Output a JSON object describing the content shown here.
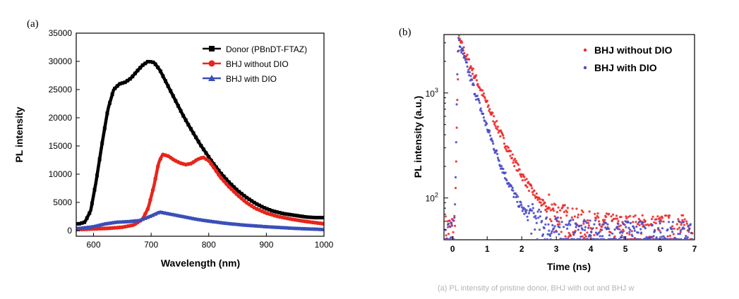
{
  "chart_data": [
    {
      "panel": "(a)",
      "type": "line",
      "xlabel": "Wavelength (nm)",
      "ylabel": "PL intensity",
      "xlim": [
        570,
        1000
      ],
      "ylim": [
        -1000,
        35000
      ],
      "xticks": [
        600,
        700,
        800,
        900,
        1000
      ],
      "yticks": [
        0,
        5000,
        10000,
        15000,
        20000,
        25000,
        30000,
        35000
      ],
      "legend_position": "top-right",
      "series": [
        {
          "name": "Donor (PBnDT-FTAZ)",
          "color": "#000000",
          "marker": "square",
          "points": [
            [
              575,
              1200
            ],
            [
              585,
              1500
            ],
            [
              595,
              3500
            ],
            [
              605,
              9000
            ],
            [
              615,
              15500
            ],
            [
              625,
              21500
            ],
            [
              635,
              25000
            ],
            [
              645,
              26000
            ],
            [
              655,
              26300
            ],
            [
              665,
              27000
            ],
            [
              675,
              28200
            ],
            [
              685,
              29300
            ],
            [
              695,
              30000
            ],
            [
              705,
              29800
            ],
            [
              715,
              28500
            ],
            [
              725,
              26500
            ],
            [
              735,
              24500
            ],
            [
              745,
              22500
            ],
            [
              755,
              20500
            ],
            [
              765,
              18700
            ],
            [
              775,
              17000
            ],
            [
              785,
              15300
            ],
            [
              795,
              13800
            ],
            [
              805,
              12300
            ],
            [
              820,
              10300
            ],
            [
              835,
              8600
            ],
            [
              850,
              7100
            ],
            [
              865,
              5900
            ],
            [
              880,
              4900
            ],
            [
              895,
              4100
            ],
            [
              910,
              3500
            ],
            [
              930,
              3000
            ],
            [
              950,
              2700
            ],
            [
              970,
              2400
            ],
            [
              985,
              2300
            ],
            [
              1000,
              2300
            ]
          ]
        },
        {
          "name": "BHJ without DIO",
          "color": "#e8251a",
          "marker": "circle",
          "points": [
            [
              575,
              200
            ],
            [
              600,
              300
            ],
            [
              625,
              400
            ],
            [
              650,
              600
            ],
            [
              670,
              1000
            ],
            [
              685,
              2000
            ],
            [
              695,
              4000
            ],
            [
              705,
              8000
            ],
            [
              713,
              12000
            ],
            [
              720,
              13500
            ],
            [
              730,
              13200
            ],
            [
              740,
              12500
            ],
            [
              750,
              12000
            ],
            [
              760,
              11700
            ],
            [
              770,
              11900
            ],
            [
              780,
              12600
            ],
            [
              790,
              13000
            ],
            [
              800,
              12400
            ],
            [
              810,
              11000
            ],
            [
              820,
              9500
            ],
            [
              835,
              7800
            ],
            [
              850,
              6300
            ],
            [
              865,
              5000
            ],
            [
              880,
              4000
            ],
            [
              900,
              3100
            ],
            [
              920,
              2500
            ],
            [
              945,
              2000
            ],
            [
              970,
              1600
            ],
            [
              1000,
              1200
            ]
          ]
        },
        {
          "name": "BHJ with DIO",
          "color": "#3a4fb8",
          "marker": "triangle",
          "points": [
            [
              575,
              400
            ],
            [
              600,
              700
            ],
            [
              620,
              1200
            ],
            [
              640,
              1500
            ],
            [
              660,
              1600
            ],
            [
              680,
              1800
            ],
            [
              700,
              2600
            ],
            [
              715,
              3300
            ],
            [
              725,
              3100
            ],
            [
              740,
              2800
            ],
            [
              760,
              2400
            ],
            [
              780,
              2000
            ],
            [
              800,
              1700
            ],
            [
              830,
              1300
            ],
            [
              860,
              1000
            ],
            [
              900,
              700
            ],
            [
              950,
              400
            ],
            [
              1000,
              200
            ]
          ]
        }
      ]
    },
    {
      "panel": "(b)",
      "type": "scatter",
      "xlabel": "Time (ns)",
      "ylabel": "PL intensity (a.u.)",
      "xscale": "linear",
      "yscale": "log",
      "xlim": [
        -0.25,
        7.0
      ],
      "ylim": [
        40,
        3600
      ],
      "xticks": [
        0,
        1,
        2,
        3,
        4,
        5,
        6,
        7
      ],
      "ytick_labels": [
        "10^2",
        "10^3"
      ],
      "legend_position": "top-right",
      "series": [
        {
          "name": "BHJ without DIO",
          "color": "#ee2a2a",
          "marker": "dot",
          "peak_time_ns": 0.18,
          "peak_value": 3300,
          "decay_tau_ns": 0.55,
          "baseline": 48
        },
        {
          "name": "BHJ with DIO",
          "color": "#4a4ac8",
          "marker": "dot",
          "peak_time_ns": 0.16,
          "peak_value": 3200,
          "decay_tau_ns": 0.42,
          "baseline": 42
        }
      ]
    }
  ],
  "caption_fragment": "(a) PL intensity of pristine donor, BHJ with out and BHJ w"
}
